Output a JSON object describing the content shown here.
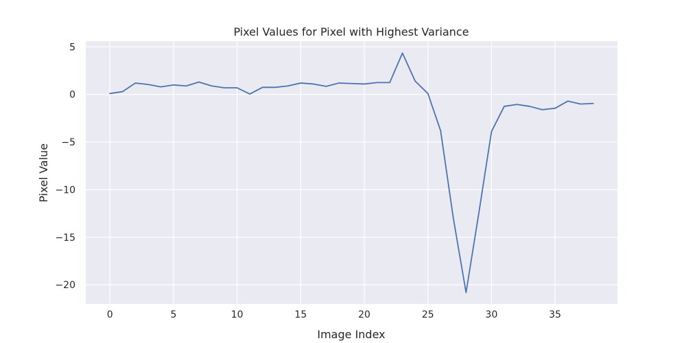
{
  "chart_data": {
    "type": "line",
    "title": "Pixel Values for Pixel with Highest Variance",
    "xlabel": "Image Index",
    "ylabel": "Pixel Value",
    "xlim": [
      -1.9,
      39.9
    ],
    "ylim": [
      -22.0,
      5.6
    ],
    "xticks": [
      0,
      5,
      10,
      15,
      20,
      25,
      30,
      35
    ],
    "yticks": [
      5,
      0,
      -5,
      -10,
      -15,
      -20
    ],
    "grid": true,
    "style": "seaborn-darkgrid",
    "colors": {
      "background": "#eaeaf2",
      "grid": "#ffffff",
      "line": "#4c72b0"
    },
    "series": [
      {
        "x": [
          0,
          1,
          2,
          3,
          4,
          5,
          6,
          7,
          8,
          9,
          10,
          11,
          12,
          13,
          14,
          15,
          16,
          17,
          18,
          19,
          20,
          21,
          22,
          23,
          24,
          25,
          26,
          27,
          28,
          29,
          30,
          31,
          32,
          33,
          34,
          35,
          36,
          37,
          38
        ],
        "values": [
          0.1,
          0.3,
          1.2,
          1.05,
          0.8,
          1.0,
          0.9,
          1.3,
          0.9,
          0.7,
          0.7,
          0.05,
          0.75,
          0.75,
          0.9,
          1.2,
          1.1,
          0.85,
          1.2,
          1.15,
          1.1,
          1.25,
          1.25,
          4.35,
          1.4,
          0.1,
          -3.8,
          -13.0,
          -20.8,
          -12.5,
          -3.9,
          -1.25,
          -1.05,
          -1.25,
          -1.6,
          -1.45,
          -0.7,
          -1.0,
          -0.95
        ]
      }
    ]
  }
}
